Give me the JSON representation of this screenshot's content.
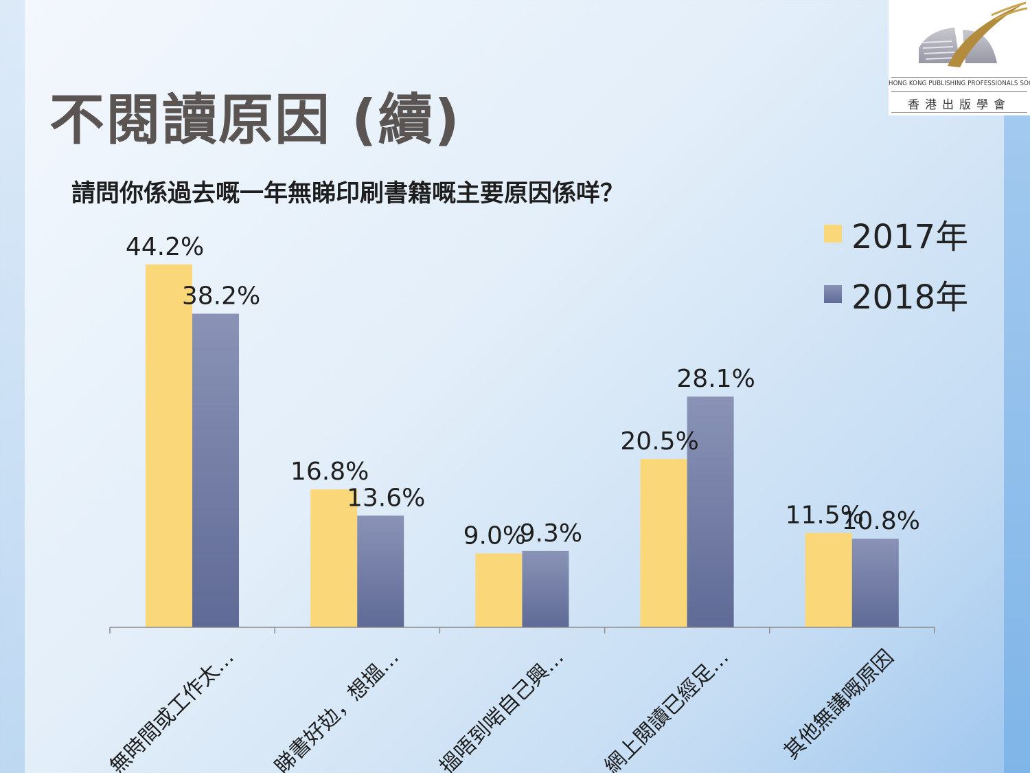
{
  "page": {
    "title": "不閱讀原因 (續)",
    "question": "請問你係過去嘅一年無睇印刷書籍嘅主要原因係咩？"
  },
  "logo": {
    "name_en": "HONG KONG PUBLISHING PROFESSIONALS SOCIETY",
    "name_zh": "香港出版學會",
    "colors": {
      "arc": "#b28c3c",
      "shape": "#a9a9b3"
    }
  },
  "chart_data": {
    "type": "bar",
    "categories": [
      "無時間或工作太…",
      "睇書好攰，想搵…",
      "搵唔到啱自己興…",
      "網上閱讀已經足…",
      "其他無講嘅原因"
    ],
    "series": [
      {
        "name": "2017年",
        "values": [
          44.2,
          16.8,
          9.0,
          20.5,
          11.5
        ],
        "labels": [
          "44.2%",
          "16.8%",
          "9.0%",
          "20.5%",
          "11.5%"
        ],
        "color": "#fad87a"
      },
      {
        "name": "2018年",
        "values": [
          38.2,
          13.6,
          9.3,
          28.1,
          10.8
        ],
        "labels": [
          "38.2%",
          "13.6%",
          "9.3%",
          "28.1%",
          "10.8%"
        ],
        "color": "#6f7aa3"
      }
    ],
    "ylim": [
      0,
      50
    ],
    "legend": "top-right",
    "grid": false
  }
}
